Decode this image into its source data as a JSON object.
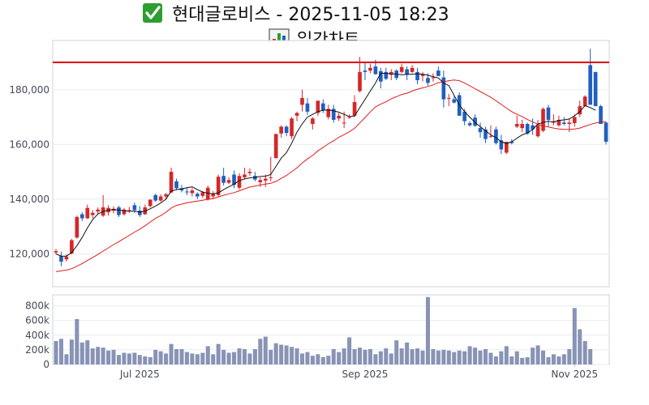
{
  "header": {
    "title": "현대글로비스 - 2025-11-05 18:23",
    "subtitle": "일간차트",
    "title_icon": "check-mark-icon",
    "subtitle_icon": "bar-chart-icon"
  },
  "chart_data": [
    {
      "type": "candlestick",
      "name": "price",
      "y_ticks": [
        120000,
        140000,
        160000,
        180000
      ],
      "y_tick_labels": [
        "120,000",
        "140,000",
        "160,000",
        "180,000"
      ],
      "ylim": [
        108000,
        198000
      ],
      "resistance_line": 190000,
      "colors": {
        "up": "#d62728",
        "down": "#1f5fbf",
        "ma5": "#111111",
        "ma20": "#e31a1c",
        "line": "#e00000"
      },
      "candles": [
        [
          120500,
          121800,
          119800,
          121000
        ],
        [
          119200,
          120800,
          115500,
          117200
        ],
        [
          118000,
          119800,
          117200,
          119000
        ],
        [
          120200,
          125500,
          119800,
          125000
        ],
        [
          126000,
          134000,
          125500,
          133500
        ],
        [
          134500,
          135200,
          132000,
          133000
        ],
        [
          133000,
          138000,
          132800,
          136800
        ],
        [
          134200,
          136000,
          133000,
          135000
        ],
        [
          135500,
          137000,
          134500,
          136200
        ],
        [
          134000,
          141500,
          133500,
          137000
        ],
        [
          135200,
          137800,
          134000,
          136800
        ],
        [
          135800,
          137400,
          134800,
          136500
        ],
        [
          137000,
          137600,
          133500,
          134200
        ],
        [
          134500,
          136800,
          134000,
          136200
        ],
        [
          136000,
          137200,
          135000,
          136000
        ],
        [
          137800,
          138800,
          135000,
          136000
        ],
        [
          135800,
          137500,
          133500,
          134200
        ],
        [
          134500,
          138000,
          134300,
          137000
        ],
        [
          137500,
          140000,
          137000,
          139800
        ],
        [
          141500,
          142000,
          139000,
          139500
        ],
        [
          139500,
          141800,
          139000,
          141000
        ],
        [
          141000,
          142300,
          140000,
          141800
        ],
        [
          142500,
          151500,
          142200,
          150000
        ],
        [
          146500,
          147500,
          143500,
          144000
        ],
        [
          144000,
          145200,
          142500,
          143200
        ],
        [
          142800,
          144300,
          141500,
          142500
        ],
        [
          142200,
          144000,
          141000,
          143200
        ],
        [
          142000,
          142500,
          140000,
          141000
        ],
        [
          141200,
          143000,
          140500,
          142500
        ],
        [
          139800,
          145000,
          139500,
          144200
        ],
        [
          141000,
          143000,
          140000,
          142000
        ],
        [
          141500,
          149000,
          141000,
          148200
        ],
        [
          148500,
          151500,
          145000,
          146000
        ],
        [
          146000,
          148000,
          145500,
          147000
        ],
        [
          149000,
          150500,
          144000,
          145200
        ],
        [
          144200,
          149500,
          143500,
          148500
        ],
        [
          148000,
          151500,
          147200,
          149000
        ],
        [
          149500,
          151200,
          148500,
          150000
        ],
        [
          148500,
          150000,
          146500,
          147200
        ],
        [
          146200,
          148000,
          144500,
          147000
        ],
        [
          146800,
          149000,
          144500,
          147500
        ],
        [
          148000,
          155500,
          146500,
          148000
        ],
        [
          155000,
          164000,
          155000,
          163800
        ],
        [
          164000,
          167000,
          162500,
          166500
        ],
        [
          166500,
          167000,
          163000,
          164200
        ],
        [
          163000,
          170000,
          162000,
          169500
        ],
        [
          170500,
          172000,
          168500,
          171500
        ],
        [
          174500,
          180000,
          172000,
          177000
        ],
        [
          175000,
          177000,
          170800,
          172000
        ],
        [
          167500,
          170000,
          165500,
          169500
        ],
        [
          171500,
          176000,
          170500,
          176000
        ],
        [
          175000,
          176500,
          171500,
          172500
        ],
        [
          170000,
          174500,
          169200,
          173000
        ],
        [
          173000,
          174500,
          168000,
          169000
        ],
        [
          169500,
          171500,
          168500,
          170500
        ],
        [
          168000,
          172000,
          166000,
          168000
        ],
        [
          170000,
          171000,
          169500,
          170000
        ],
        [
          170500,
          178000,
          170000,
          175500
        ],
        [
          179500,
          192000,
          179000,
          186500
        ],
        [
          187000,
          190000,
          183500,
          186500
        ],
        [
          187000,
          189500,
          186000,
          188000
        ],
        [
          188500,
          191000,
          185500,
          185700
        ],
        [
          186800,
          188000,
          180500,
          183000
        ],
        [
          186500,
          188000,
          183500,
          184000
        ],
        [
          185500,
          187500,
          183500,
          186500
        ],
        [
          187000,
          187500,
          183500,
          184300
        ],
        [
          186500,
          189500,
          186000,
          188300
        ],
        [
          187500,
          188500,
          183500,
          185500
        ],
        [
          186500,
          189000,
          186200,
          188000
        ],
        [
          186500,
          188000,
          182000,
          183500
        ],
        [
          185000,
          186500,
          183000,
          185500
        ],
        [
          184300,
          186000,
          181500,
          182500
        ],
        [
          184500,
          186000,
          183000,
          184500
        ],
        [
          187000,
          188500,
          185000,
          185000
        ],
        [
          184500,
          187000,
          173500,
          176500
        ],
        [
          177000,
          178500,
          174000,
          177000
        ],
        [
          176500,
          177500,
          175000,
          175300
        ],
        [
          178000,
          179000,
          170500,
          170500
        ],
        [
          172000,
          173000,
          167000,
          168500
        ],
        [
          167800,
          168500,
          166500,
          167000
        ],
        [
          169800,
          171000,
          166500,
          166800
        ],
        [
          166000,
          168000,
          162500,
          164500
        ],
        [
          165500,
          166500,
          160500,
          162000
        ],
        [
          163000,
          167000,
          162500,
          163000
        ],
        [
          165500,
          166500,
          160000,
          160500
        ],
        [
          161500,
          163500,
          156500,
          158200
        ],
        [
          157000,
          161000,
          156500,
          161000
        ],
        [
          161000,
          162000,
          160000,
          160500
        ],
        [
          166500,
          170500,
          166000,
          167500
        ],
        [
          166000,
          169000,
          164500,
          167500
        ],
        [
          167500,
          168000,
          163500,
          164000
        ],
        [
          167000,
          169500,
          163500,
          165500
        ],
        [
          163000,
          169000,
          162500,
          167000
        ],
        [
          165000,
          173500,
          164500,
          173000
        ],
        [
          173500,
          174500,
          166500,
          169000
        ],
        [
          168000,
          171000,
          167000,
          168500
        ],
        [
          167000,
          170500,
          166500,
          169000
        ],
        [
          168000,
          170000,
          167000,
          167500
        ],
        [
          167500,
          169500,
          164500,
          168000
        ],
        [
          167800,
          171000,
          166500,
          170000
        ],
        [
          171000,
          176000,
          170000,
          174000
        ],
        [
          174000,
          178000,
          174000,
          177500
        ],
        [
          189000,
          195000,
          174500,
          174500
        ],
        [
          186500,
          186500,
          174000,
          174000
        ],
        [
          174000,
          174500,
          167500,
          167500
        ],
        [
          168000,
          168200,
          160000,
          161000
        ]
      ],
      "ma5": [
        120000,
        119200,
        119200,
        120500,
        123000,
        126000,
        129500,
        132500,
        134600,
        135500,
        136000,
        136200,
        136000,
        135800,
        135600,
        135600,
        135300,
        135600,
        136500,
        137500,
        138600,
        140000,
        143000,
        143500,
        143800,
        144200,
        144500,
        143500,
        142600,
        142200,
        142000,
        142300,
        143500,
        144500,
        145500,
        146800,
        147400,
        147800,
        148000,
        148300,
        148400,
        149000,
        152000,
        155000,
        157000,
        160500,
        164500,
        167500,
        170000,
        171000,
        172000,
        172500,
        172600,
        172300,
        171800,
        171000,
        170200,
        170400,
        173500,
        176500,
        179500,
        182500,
        186000,
        186000,
        185800,
        185700,
        185500,
        185600,
        185700,
        185800,
        185700,
        185300,
        184800,
        184300,
        182500,
        181500,
        178000,
        174500,
        172000,
        170000,
        168000,
        166500,
        165000,
        163500,
        162500,
        161000,
        160300,
        161000,
        162300,
        163500,
        164200,
        165500,
        167500,
        168000,
        168500,
        168200,
        168800,
        169000,
        169300,
        170500,
        172000,
        174200,
        173500,
        172500
      ]
    },
    {
      "type": "bar",
      "name": "volume",
      "y_ticks": [
        0,
        200000,
        400000,
        600000,
        800000
      ],
      "y_tick_labels": [
        "0",
        "200k",
        "400k",
        "600k",
        "800k"
      ],
      "ylim": [
        0,
        950000
      ],
      "color": "#8893b5",
      "values": [
        320000,
        350000,
        140000,
        340000,
        620000,
        300000,
        330000,
        220000,
        240000,
        230000,
        190000,
        200000,
        130000,
        160000,
        150000,
        160000,
        130000,
        110000,
        100000,
        200000,
        180000,
        150000,
        280000,
        210000,
        210000,
        170000,
        150000,
        140000,
        160000,
        250000,
        140000,
        280000,
        200000,
        160000,
        170000,
        220000,
        210000,
        150000,
        210000,
        350000,
        380000,
        200000,
        290000,
        270000,
        260000,
        240000,
        220000,
        150000,
        170000,
        120000,
        140000,
        100000,
        120000,
        210000,
        170000,
        220000,
        370000,
        210000,
        230000,
        200000,
        210000,
        140000,
        180000,
        220000,
        150000,
        330000,
        220000,
        300000,
        210000,
        220000,
        190000,
        920000,
        210000,
        190000,
        200000,
        190000,
        170000,
        190000,
        180000,
        250000,
        230000,
        190000,
        210000,
        160000,
        110000,
        180000,
        250000,
        110000,
        180000,
        90000,
        100000,
        230000,
        260000,
        190000,
        100000,
        140000,
        110000,
        140000,
        210000,
        770000,
        480000,
        320000,
        210000
      ],
      "x_tick_labels": [
        "Jul 2025",
        "Sep 2025",
        "Nov 2025"
      ]
    }
  ]
}
